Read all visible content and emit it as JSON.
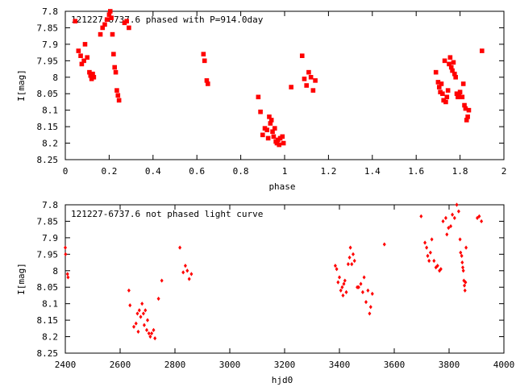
{
  "chart_data": [
    {
      "type": "scatter",
      "title": "121227-6737.6 phased with P=914.0day",
      "xlabel": "phase",
      "ylabel": "I[mag]",
      "xlim": [
        0,
        2
      ],
      "ylim": [
        7.8,
        8.25
      ],
      "y_inverted": true,
      "grid": false,
      "marker_color": "#ff0000",
      "xticks": [
        "0",
        "0.2",
        "0.4",
        "0.6",
        "0.8",
        "1",
        "1.2",
        "1.4",
        "1.6",
        "1.8",
        "2"
      ],
      "xtick_values": [
        0,
        0.2,
        0.4,
        0.6,
        0.8,
        1.0,
        1.2,
        1.4,
        1.6,
        1.8,
        2.0
      ],
      "yticks": [
        "7.8",
        "7.85",
        "7.9",
        "7.95",
        "8",
        "8.05",
        "8.1",
        "8.15",
        "8.2",
        "8.25"
      ],
      "ytick_values": [
        7.8,
        7.85,
        7.9,
        7.95,
        8.0,
        8.05,
        8.1,
        8.15,
        8.2,
        8.25
      ],
      "series": [
        {
          "points": [
            [
              0.045,
              7.83
            ],
            [
              0.06,
              7.92
            ],
            [
              0.07,
              7.935
            ],
            [
              0.075,
              7.96
            ],
            [
              0.085,
              7.95
            ],
            [
              0.09,
              7.9
            ],
            [
              0.1,
              7.94
            ],
            [
              0.11,
              7.985
            ],
            [
              0.115,
              7.995
            ],
            [
              0.12,
              8.005
            ],
            [
              0.125,
              7.99
            ],
            [
              0.13,
              8.0
            ],
            [
              0.16,
              7.87
            ],
            [
              0.17,
              7.85
            ],
            [
              0.18,
              7.84
            ],
            [
              0.19,
              7.825
            ],
            [
              0.2,
              7.81
            ],
            [
              0.205,
              7.8
            ],
            [
              0.21,
              7.82
            ],
            [
              0.215,
              7.87
            ],
            [
              0.22,
              7.93
            ],
            [
              0.225,
              7.97
            ],
            [
              0.23,
              7.985
            ],
            [
              0.235,
              8.04
            ],
            [
              0.24,
              8.055
            ],
            [
              0.245,
              8.07
            ],
            [
              0.27,
              7.835
            ],
            [
              0.28,
              7.83
            ],
            [
              0.29,
              7.85
            ],
            [
              0.63,
              7.93
            ],
            [
              0.635,
              7.95
            ],
            [
              0.645,
              8.01
            ],
            [
              0.65,
              8.02
            ],
            [
              0.88,
              8.06
            ],
            [
              0.89,
              8.105
            ],
            [
              0.9,
              8.175
            ],
            [
              0.91,
              8.155
            ],
            [
              0.92,
              8.16
            ],
            [
              0.925,
              8.185
            ],
            [
              0.93,
              8.12
            ],
            [
              0.935,
              8.14
            ],
            [
              0.94,
              8.13
            ],
            [
              0.945,
              8.165
            ],
            [
              0.95,
              8.18
            ],
            [
              0.955,
              8.155
            ],
            [
              0.96,
              8.195
            ],
            [
              0.965,
              8.2
            ],
            [
              0.97,
              8.19
            ],
            [
              0.975,
              8.205
            ],
            [
              0.98,
              8.185
            ],
            [
              0.99,
              8.18
            ],
            [
              0.995,
              8.2
            ],
            [
              1.03,
              8.03
            ],
            [
              1.08,
              7.935
            ],
            [
              1.09,
              8.005
            ],
            [
              1.1,
              8.025
            ],
            [
              1.11,
              7.985
            ],
            [
              1.12,
              8.0
            ],
            [
              1.13,
              8.04
            ],
            [
              1.14,
              8.01
            ],
            [
              1.69,
              7.985
            ],
            [
              1.7,
              8.015
            ],
            [
              1.705,
              8.03
            ],
            [
              1.71,
              8.045
            ],
            [
              1.715,
              8.02
            ],
            [
              1.72,
              8.05
            ],
            [
              1.725,
              8.07
            ],
            [
              1.73,
              7.95
            ],
            [
              1.735,
              8.075
            ],
            [
              1.74,
              8.06
            ],
            [
              1.745,
              8.04
            ],
            [
              1.75,
              7.96
            ],
            [
              1.755,
              7.94
            ],
            [
              1.76,
              7.97
            ],
            [
              1.765,
              7.98
            ],
            [
              1.77,
              7.955
            ],
            [
              1.775,
              7.99
            ],
            [
              1.78,
              8.0
            ],
            [
              1.785,
              8.05
            ],
            [
              1.79,
              8.06
            ],
            [
              1.795,
              8.055
            ],
            [
              1.8,
              8.045
            ],
            [
              1.81,
              8.06
            ],
            [
              1.815,
              8.02
            ],
            [
              1.82,
              8.085
            ],
            [
              1.825,
              8.095
            ],
            [
              1.83,
              8.13
            ],
            [
              1.835,
              8.12
            ],
            [
              1.84,
              8.1
            ],
            [
              1.9,
              7.92
            ]
          ]
        }
      ]
    },
    {
      "type": "scatter",
      "title": "121227-6737.6 not phased light curve",
      "xlabel": "hjd0",
      "ylabel": "I[mag]",
      "xlim": [
        2400,
        4000
      ],
      "ylim": [
        7.8,
        8.25
      ],
      "y_inverted": true,
      "grid": false,
      "marker_color": "#ff0000",
      "xticks": [
        "2400",
        "2600",
        "2800",
        "3000",
        "3200",
        "3400",
        "3600",
        "3800",
        "4000"
      ],
      "xtick_values": [
        2400,
        2600,
        2800,
        3000,
        3200,
        3400,
        3600,
        3800,
        4000
      ],
      "yticks": [
        "7.8",
        "7.85",
        "7.9",
        "7.95",
        "8",
        "8.05",
        "8.1",
        "8.15",
        "8.2",
        "8.25"
      ],
      "ytick_values": [
        7.8,
        7.85,
        7.9,
        7.95,
        8.0,
        8.05,
        8.1,
        8.15,
        8.2,
        8.25
      ],
      "series": [
        {
          "points": [
            [
              2400,
              7.93
            ],
            [
              2401,
              7.95
            ],
            [
              2408,
              8.01
            ],
            [
              2410,
              8.02
            ],
            [
              2632,
              8.06
            ],
            [
              2636,
              8.105
            ],
            [
              2650,
              8.17
            ],
            [
              2658,
              8.16
            ],
            [
              2663,
              8.13
            ],
            [
              2666,
              8.185
            ],
            [
              2670,
              8.12
            ],
            [
              2675,
              8.14
            ],
            [
              2680,
              8.1
            ],
            [
              2685,
              8.13
            ],
            [
              2688,
              8.165
            ],
            [
              2692,
              8.12
            ],
            [
              2697,
              8.18
            ],
            [
              2700,
              8.15
            ],
            [
              2705,
              8.19
            ],
            [
              2710,
              8.2
            ],
            [
              2715,
              8.19
            ],
            [
              2722,
              8.18
            ],
            [
              2727,
              8.205
            ],
            [
              2740,
              8.085
            ],
            [
              2752,
              8.03
            ],
            [
              2818,
              7.93
            ],
            [
              2830,
              8.005
            ],
            [
              2838,
              7.985
            ],
            [
              2845,
              8.0
            ],
            [
              2852,
              8.025
            ],
            [
              2860,
              8.01
            ],
            [
              3385,
              7.985
            ],
            [
              3390,
              7.995
            ],
            [
              3395,
              8.035
            ],
            [
              3400,
              8.02
            ],
            [
              3405,
              8.06
            ],
            [
              3410,
              8.05
            ],
            [
              3413,
              8.075
            ],
            [
              3416,
              8.04
            ],
            [
              3420,
              8.03
            ],
            [
              3425,
              8.065
            ],
            [
              3432,
              7.98
            ],
            [
              3437,
              7.96
            ],
            [
              3440,
              7.93
            ],
            [
              3445,
              7.98
            ],
            [
              3450,
              7.95
            ],
            [
              3455,
              7.97
            ],
            [
              3465,
              8.05
            ],
            [
              3470,
              8.05
            ],
            [
              3478,
              8.04
            ],
            [
              3485,
              8.065
            ],
            [
              3490,
              8.02
            ],
            [
              3497,
              8.095
            ],
            [
              3504,
              8.06
            ],
            [
              3510,
              8.13
            ],
            [
              3514,
              8.11
            ],
            [
              3520,
              8.07
            ],
            [
              3564,
              7.92
            ],
            [
              3698,
              7.835
            ],
            [
              3712,
              7.915
            ],
            [
              3718,
              7.93
            ],
            [
              3722,
              7.955
            ],
            [
              3727,
              7.97
            ],
            [
              3732,
              7.945
            ],
            [
              3737,
              7.905
            ],
            [
              3745,
              7.97
            ],
            [
              3752,
              7.99
            ],
            [
              3758,
              7.985
            ],
            [
              3765,
              8.0
            ],
            [
              3770,
              7.995
            ],
            [
              3778,
              7.85
            ],
            [
              3788,
              7.84
            ],
            [
              3792,
              7.89
            ],
            [
              3798,
              7.87
            ],
            [
              3806,
              7.865
            ],
            [
              3812,
              7.83
            ],
            [
              3820,
              7.84
            ],
            [
              3828,
              7.8
            ],
            [
              3835,
              7.82
            ],
            [
              3840,
              7.905
            ],
            [
              3842,
              7.945
            ],
            [
              3846,
              7.955
            ],
            [
              3848,
              7.975
            ],
            [
              3850,
              7.99
            ],
            [
              3852,
              8.0
            ],
            [
              3854,
              8.03
            ],
            [
              3856,
              8.045
            ],
            [
              3858,
              8.06
            ],
            [
              3860,
              8.035
            ],
            [
              3862,
              7.93
            ],
            [
              3903,
              7.84
            ],
            [
              3910,
              7.835
            ],
            [
              3918,
              7.85
            ]
          ]
        }
      ]
    }
  ]
}
